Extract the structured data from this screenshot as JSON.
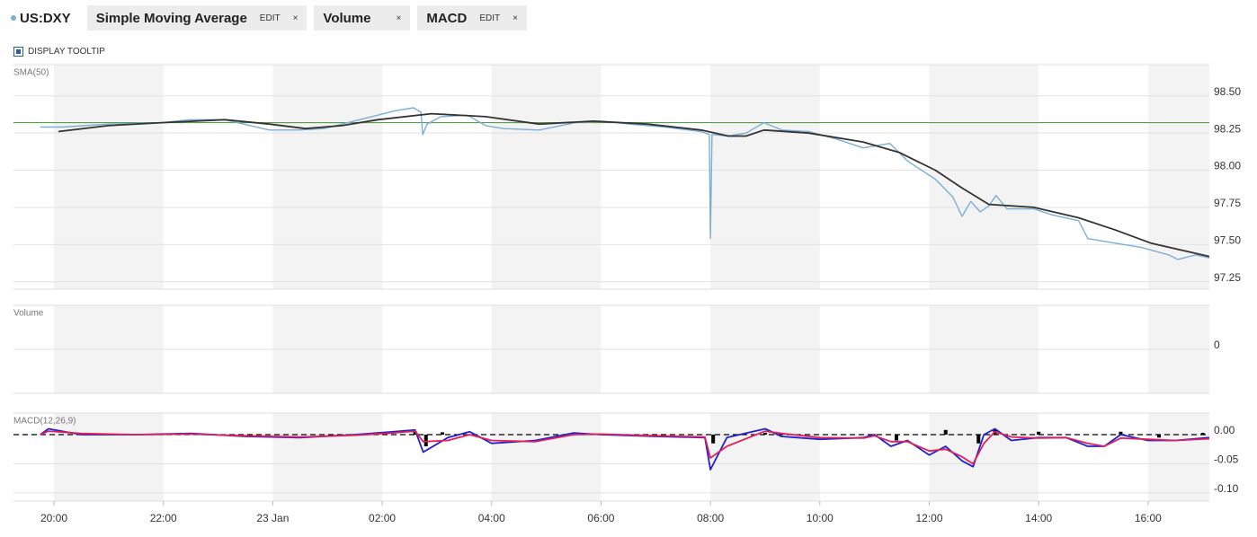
{
  "toolbar": {
    "tabs": [
      {
        "label": "Simple Moving Average",
        "edit": "EDIT",
        "close": "×"
      },
      {
        "label": "Volume",
        "close": "×"
      },
      {
        "label": "MACD",
        "edit": "EDIT",
        "close": "×"
      }
    ],
    "tooltip_toggle": "DISPLAY TOOLTIP"
  },
  "chart_data": [
    {
      "type": "line",
      "title": "SMA(50)",
      "xlim": [
        -0.74,
        21.12
      ],
      "ylim": [
        97.2,
        98.71
      ],
      "grid": true,
      "yticks": [
        97.25,
        {
          "value": 97.5,
          "label": "97.50"
        },
        97.75,
        {
          "value": 98,
          "label": "98.00"
        },
        98.25,
        {
          "value": 98.5,
          "label": "98.50"
        }
      ],
      "hline": {
        "value": 98.32,
        "color": "#5a9e4b"
      },
      "series": [
        {
          "name": "US:DXY",
          "color": "#7bafd4",
          "x": [
            -0.25,
            0.16,
            0.99,
            1.97,
            2.47,
            3.12,
            3.94,
            4.44,
            4.93,
            5.59,
            6.24,
            6.57,
            6.71,
            6.74,
            6.82,
            7.07,
            7.56,
            7.89,
            8.22,
            8.87,
            9.53,
            10.02,
            10.52,
            11.18,
            11.83,
            11.98,
            12.0,
            12.03,
            12.33,
            12.65,
            12.98,
            13.31,
            13.8,
            14.3,
            14.79,
            15.28,
            15.61,
            16.11,
            16.43,
            16.6,
            16.76,
            16.93,
            17.09,
            17.22,
            17.42,
            17.91,
            18.24,
            18.73,
            18.9,
            19.39,
            19.88,
            20.38,
            20.54,
            20.87,
            21.12
          ],
          "values": [
            98.29,
            98.29,
            98.31,
            98.32,
            98.34,
            98.34,
            98.27,
            98.27,
            98.28,
            98.34,
            98.4,
            98.42,
            98.39,
            98.24,
            98.31,
            98.36,
            98.37,
            98.3,
            98.28,
            98.27,
            98.32,
            98.33,
            98.31,
            98.29,
            98.26,
            98.24,
            97.54,
            98.24,
            98.23,
            98.25,
            98.32,
            98.27,
            98.26,
            98.21,
            98.15,
            98.18,
            98.06,
            97.94,
            97.82,
            97.69,
            97.79,
            97.72,
            97.76,
            97.83,
            97.74,
            97.74,
            97.7,
            97.66,
            97.54,
            97.51,
            97.48,
            97.43,
            97.4,
            97.43,
            97.41
          ]
        },
        {
          "color": "#333333",
          "x": [
            0.08,
            0.99,
            1.97,
            3.12,
            3.94,
            4.6,
            5.26,
            5.92,
            6.9,
            7.89,
            8.87,
            9.86,
            10.85,
            11.83,
            12.33,
            12.65,
            12.98,
            13.8,
            14.79,
            15.45,
            16.11,
            16.6,
            17.09,
            17.91,
            18.73,
            19.39,
            20.05,
            21.12
          ],
          "values": [
            98.26,
            98.3,
            98.32,
            98.34,
            98.31,
            98.28,
            98.3,
            98.34,
            98.38,
            98.36,
            98.31,
            98.33,
            98.31,
            98.27,
            98.23,
            98.23,
            98.27,
            98.25,
            98.19,
            98.12,
            98.0,
            97.88,
            97.77,
            97.75,
            97.68,
            97.6,
            97.51,
            97.42
          ]
        }
      ]
    },
    {
      "type": "bar",
      "title": "Volume",
      "xlim": [
        -0.74,
        21.12
      ],
      "ylim": [
        -1,
        1
      ],
      "yticks": [
        0
      ],
      "grid": true,
      "series": []
    },
    {
      "type": "line",
      "title": "MACD(12,26,9)",
      "xlim": [
        -0.74,
        21.12
      ],
      "ylim": [
        -0.114,
        0.037
      ],
      "grid": true,
      "yticks": [
        {
          "value": 0,
          "label": "0.00"
        },
        {
          "value": -0.05,
          "label": "-0.05"
        },
        {
          "value": -0.1,
          "label": "-0.10"
        }
      ],
      "xticks": [
        {
          "value": 0,
          "label": "20:00"
        },
        {
          "value": 2,
          "label": "22:00"
        },
        {
          "value": 4,
          "label": "23 Jan"
        },
        {
          "value": 6,
          "label": "02:00"
        },
        {
          "value": 8,
          "label": "04:00"
        },
        {
          "value": 10,
          "label": "06:00"
        },
        {
          "value": 12,
          "label": "08:00"
        },
        {
          "value": 14,
          "label": "10:00"
        },
        {
          "value": 16,
          "label": "12:00"
        },
        {
          "value": 18,
          "label": "14:00"
        },
        {
          "value": 20,
          "label": "16:00"
        }
      ],
      "hline": {
        "value": 0,
        "color": "#000000",
        "dashed": true
      },
      "series": [
        {
          "type": "bar",
          "color": "#000000",
          "x": [
            6.6,
            6.8,
            7.1,
            12.05,
            13.0,
            15.4,
            16.3,
            16.9,
            17.2,
            18.0,
            19.5,
            20.2,
            21.0
          ],
          "values": [
            0.006,
            -0.02,
            0.004,
            -0.015,
            0.003,
            -0.01,
            0.008,
            -0.015,
            0.01,
            0.005,
            0.005,
            -0.005,
            0.003
          ]
        },
        {
          "color": "#2020d0",
          "x": [
            -0.25,
            -0.1,
            0.5,
            1.5,
            2.5,
            3.5,
            4.5,
            5.5,
            6.2,
            6.6,
            6.75,
            7.2,
            7.6,
            8.0,
            8.8,
            9.5,
            10.0,
            11.0,
            11.9,
            12.0,
            12.3,
            13.0,
            13.3,
            14.0,
            14.8,
            15.0,
            15.3,
            15.6,
            16.0,
            16.3,
            16.6,
            16.8,
            17.0,
            17.2,
            17.5,
            18.0,
            18.5,
            18.9,
            19.2,
            19.5,
            20.0,
            20.5,
            21.12
          ],
          "values": [
            0.0,
            0.01,
            0.0,
            0.0,
            0.002,
            -0.003,
            -0.005,
            0.0,
            0.005,
            0.008,
            -0.03,
            -0.005,
            0.005,
            -0.015,
            -0.01,
            0.003,
            0.0,
            -0.003,
            -0.005,
            -0.06,
            -0.005,
            0.01,
            -0.003,
            -0.008,
            -0.005,
            0.0,
            -0.02,
            -0.01,
            -0.035,
            -0.02,
            -0.045,
            -0.055,
            0.0,
            0.01,
            -0.01,
            -0.005,
            -0.005,
            -0.02,
            -0.02,
            0.0,
            -0.01,
            -0.01,
            -0.005
          ]
        },
        {
          "color": "#e0205a",
          "x": [
            -0.25,
            -0.1,
            0.5,
            1.5,
            2.5,
            3.5,
            4.5,
            5.5,
            6.2,
            6.6,
            6.75,
            7.2,
            7.6,
            8.0,
            8.8,
            9.5,
            10.0,
            11.0,
            11.9,
            12.0,
            12.3,
            13.0,
            13.3,
            14.0,
            14.8,
            15.0,
            15.3,
            15.6,
            16.0,
            16.3,
            16.6,
            16.8,
            17.0,
            17.2,
            17.5,
            18.0,
            18.5,
            18.9,
            19.2,
            19.5,
            20.0,
            20.5,
            21.12
          ],
          "values": [
            0.0,
            0.006,
            0.002,
            0.0,
            0.001,
            -0.002,
            -0.004,
            -0.001,
            0.003,
            0.006,
            -0.012,
            -0.01,
            0.0,
            -0.01,
            -0.012,
            0.0,
            0.001,
            -0.002,
            -0.004,
            -0.04,
            -0.02,
            0.006,
            0.002,
            -0.005,
            -0.006,
            -0.002,
            -0.012,
            -0.012,
            -0.028,
            -0.025,
            -0.038,
            -0.05,
            -0.015,
            0.005,
            -0.004,
            -0.006,
            -0.005,
            -0.015,
            -0.02,
            -0.006,
            -0.008,
            -0.01,
            -0.007
          ]
        }
      ]
    }
  ]
}
